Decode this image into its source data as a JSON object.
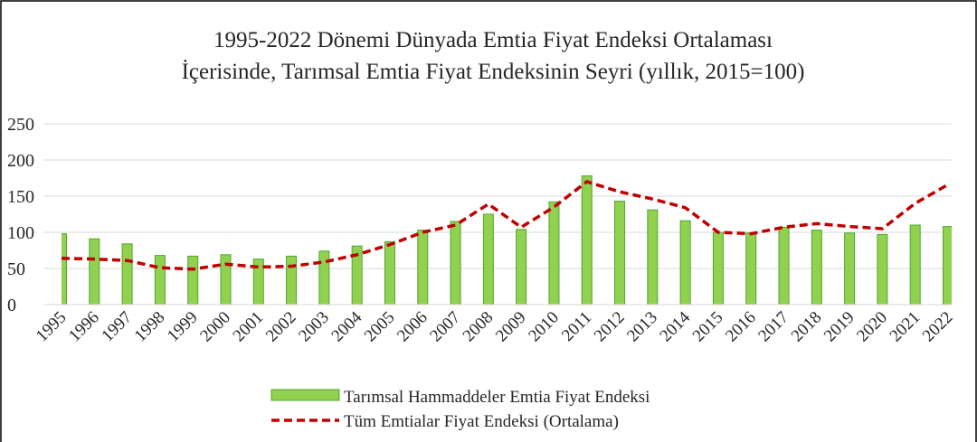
{
  "chart_data": {
    "type": "bar_line",
    "title": [
      "1995-2022 Dönemi Dünyada Emtia Fiyat Endeksi Ortalaması",
      "İçerisinde, Tarımsal Emtia Fiyat Endeksinin Seyri (yıllık, 2015=100)"
    ],
    "categories": [
      "1995",
      "1996",
      "1997",
      "1998",
      "1999",
      "2000",
      "2001",
      "2002",
      "2003",
      "2004",
      "2005",
      "2006",
      "2007",
      "2008",
      "2009",
      "2010",
      "2011",
      "2012",
      "2013",
      "2014",
      "2015",
      "2016",
      "2017",
      "2018",
      "2019",
      "2020",
      "2021",
      "2022"
    ],
    "series": [
      {
        "name": "Tarımsal Hammaddeler Emtia Fiyat Endeksi",
        "type": "bar",
        "color": "#92d050",
        "values": [
          98,
          91,
          84,
          68,
          67,
          69,
          63,
          67,
          74,
          81,
          87,
          103,
          115,
          125,
          104,
          142,
          178,
          143,
          131,
          116,
          100,
          99,
          107,
          103,
          99,
          97,
          110,
          108
        ]
      },
      {
        "name": "Tüm Emtialar Fiyat Endeksi (Ortalama)",
        "type": "line",
        "color": "#c00000",
        "values": [
          64,
          63,
          61,
          51,
          49,
          56,
          52,
          53,
          59,
          69,
          83,
          100,
          110,
          139,
          107,
          135,
          170,
          156,
          146,
          134,
          100,
          98,
          107,
          112,
          108,
          105,
          140,
          166
        ]
      }
    ],
    "ylim": [
      0,
      250
    ],
    "yticks": [
      0,
      50,
      100,
      150,
      200,
      250
    ],
    "grid": true,
    "legend": "bottom"
  }
}
